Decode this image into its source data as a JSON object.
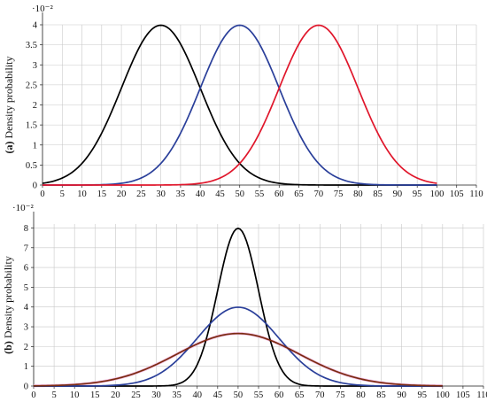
{
  "chart_data": [
    {
      "type": "line",
      "panel_label": "(a)",
      "ylabel": "Density probability",
      "y_multiplier": "·10⁻²",
      "xlim": [
        0,
        110
      ],
      "ylim": [
        0,
        4
      ],
      "x_ticks": [
        0,
        5,
        10,
        15,
        20,
        25,
        30,
        35,
        40,
        45,
        50,
        55,
        60,
        65,
        70,
        75,
        80,
        85,
        90,
        95,
        100,
        105,
        110
      ],
      "y_ticks": [
        0,
        0.5,
        1,
        1.5,
        2,
        2.5,
        3,
        3.5,
        4
      ],
      "grid": true,
      "series": [
        {
          "color": "#000000",
          "distribution": "normal",
          "mean": 30,
          "sd": 10,
          "x_range": [
            0,
            100
          ]
        },
        {
          "color": "#2a3f9a",
          "distribution": "normal",
          "mean": 50,
          "sd": 10,
          "x_range": [
            0,
            100
          ]
        },
        {
          "color": "#e0162b",
          "distribution": "normal",
          "mean": 70,
          "sd": 10,
          "x_range": [
            0,
            100
          ]
        }
      ]
    },
    {
      "type": "line",
      "panel_label": "(b)",
      "ylabel": "Density probability",
      "y_multiplier": "·10⁻²",
      "xlim": [
        0,
        110
      ],
      "ylim": [
        0,
        8.2
      ],
      "x_ticks": [
        0,
        5,
        10,
        15,
        20,
        25,
        30,
        35,
        40,
        45,
        50,
        55,
        60,
        65,
        70,
        75,
        80,
        85,
        90,
        95,
        100,
        105,
        110
      ],
      "y_ticks": [
        0,
        1,
        2,
        3,
        4,
        5,
        6,
        7,
        8
      ],
      "grid": true,
      "series": [
        {
          "color": "#000000",
          "distribution": "normal",
          "mean": 50,
          "sd": 5,
          "x_range": [
            0,
            100
          ]
        },
        {
          "color": "#2a3f9a",
          "distribution": "normal",
          "mean": 50,
          "sd": 10,
          "x_range": [
            0,
            100
          ]
        },
        {
          "color": "#7a2c10",
          "distribution": "normal",
          "mean": 50,
          "sd": 15,
          "x_range": [
            0,
            100
          ]
        },
        {
          "color": "#f4bfe6",
          "distribution": "normal",
          "mean": 50,
          "sd": 15,
          "x_range": [
            0,
            100
          ]
        }
      ]
    }
  ]
}
